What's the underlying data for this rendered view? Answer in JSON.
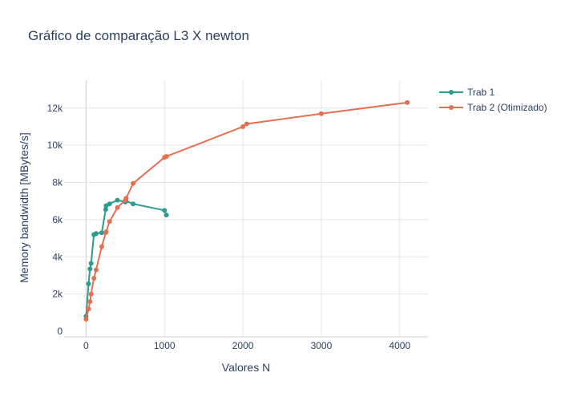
{
  "chart_data": {
    "type": "line",
    "title": "Gráfico de comparação L3 X newton",
    "xlabel": "Valores N",
    "ylabel": "Memory bandwidth [MBytes/s]",
    "xlim": [
      -280,
      4360
    ],
    "ylim": [
      -300,
      13500
    ],
    "x_ticks": [
      0,
      1000,
      2000,
      3000,
      4000
    ],
    "x_tick_labels": [
      "0",
      "1000",
      "2000",
      "3000",
      "4000"
    ],
    "y_ticks": [
      0,
      2000,
      4000,
      6000,
      8000,
      10000,
      12000
    ],
    "y_tick_labels": [
      "0",
      "2k",
      "4k",
      "6k",
      "8k",
      "10k",
      "12k"
    ],
    "grid": true,
    "legend_position": "top-right",
    "series": [
      {
        "name": "Trab 1",
        "color": "#2a9d8f",
        "x": [
          0,
          32,
          50,
          64,
          100,
          128,
          200,
          250,
          256,
          300,
          400,
          500,
          511,
          600,
          1000,
          1024
        ],
        "y": [
          800,
          2550,
          3350,
          3650,
          5200,
          5250,
          5300,
          6550,
          6750,
          6850,
          7050,
          6950,
          7000,
          6850,
          6500,
          6250
        ]
      },
      {
        "name": "Trab 2 (Otimizado)",
        "color": "#e76f51",
        "x": [
          0,
          32,
          50,
          64,
          100,
          128,
          200,
          250,
          256,
          300,
          400,
          500,
          511,
          600,
          1000,
          1024,
          2000,
          2048,
          3000,
          4096
        ],
        "y": [
          650,
          1200,
          1600,
          2000,
          2850,
          3300,
          4550,
          5300,
          5350,
          5900,
          6650,
          7050,
          7150,
          7950,
          9350,
          9400,
          11000,
          11150,
          11700,
          12300
        ]
      }
    ]
  }
}
